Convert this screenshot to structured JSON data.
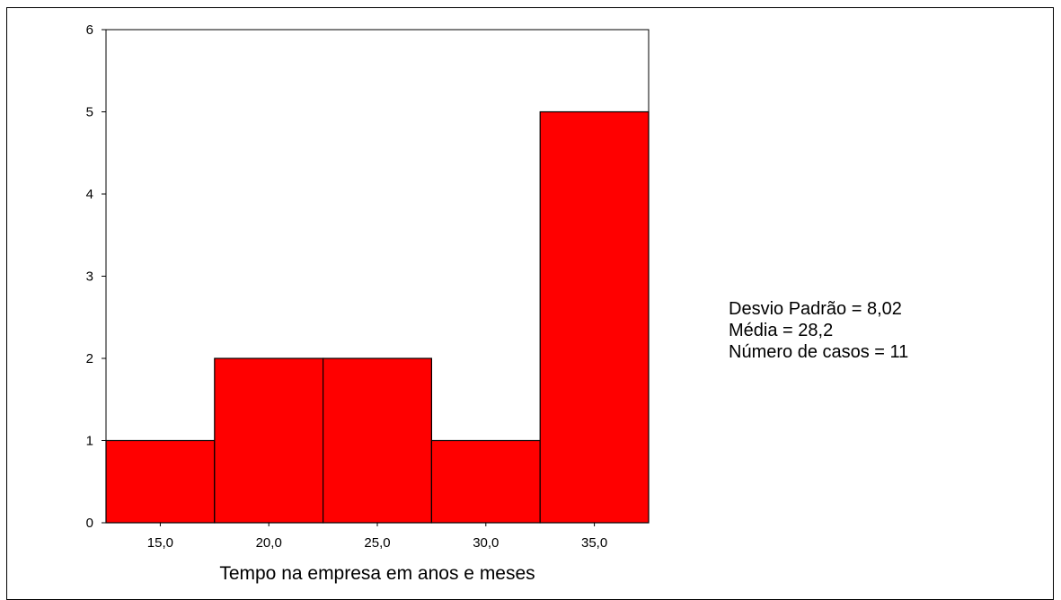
{
  "chart_data": {
    "type": "bar",
    "subtype": "histogram",
    "categories": [
      "15,0",
      "20,0",
      "25,0",
      "30,0",
      "35,0"
    ],
    "values": [
      1,
      2,
      2,
      1,
      5
    ],
    "bin_width": 5,
    "xlim": [
      12.5,
      37.5
    ],
    "ylim": [
      0,
      6
    ],
    "y_ticks": [
      "0",
      "1",
      "2",
      "3",
      "4",
      "5",
      "6"
    ],
    "xlabel": "Tempo na empresa em anos e meses",
    "ylabel": "",
    "grid": false,
    "bar_color": "#ff0000",
    "bar_edge_color": "#000000"
  },
  "stats": {
    "std_dev": "Desvio Padrão = 8,02",
    "mean": "Média = 28,2",
    "count": "Número de casos = 11"
  }
}
